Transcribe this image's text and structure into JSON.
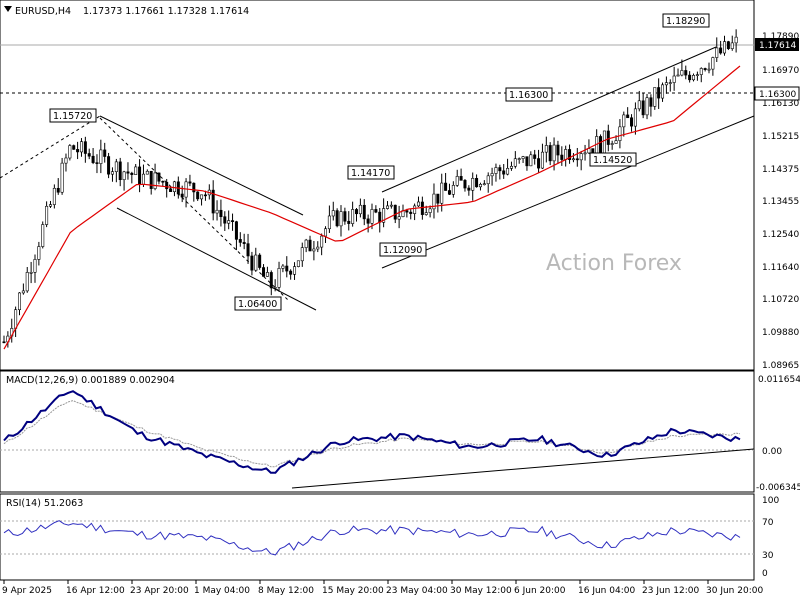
{
  "header": {
    "symbol": "EURUSD,H4",
    "ohlc": "1.17373 1.17661 1.17328 1.17614"
  },
  "watermark": "Action Forex",
  "colors": {
    "candles": "#000000",
    "ma": "#e00000",
    "macd": "#000080",
    "signal": "#999999",
    "rsi": "#3030c0",
    "price_tag_bg": "#000000"
  },
  "chart_data": [
    {
      "type": "candlestick",
      "title": "EURUSD,H4",
      "ohlc_label": "1.17373 1.17661 1.17328 1.17614",
      "ylim": [
        1.0895,
        1.1825
      ],
      "y_ticks": [
        "1.17890",
        "1.16970",
        "1.16130",
        "1.15215",
        "1.14375",
        "1.13455",
        "1.12540",
        "1.11640",
        "1.10720",
        "1.09880",
        "1.08965"
      ],
      "last_price": "1.17614",
      "level_line": "1.16300",
      "series": [
        {
          "name": "Price",
          "x": [
            "9 Apr 2025",
            "16 Apr 12:00",
            "23 Apr 20:00",
            "1 May 04:00",
            "8 May 12:00",
            "15 May 20:00",
            "23 May 04:00",
            "30 May 12:00",
            "6 Jun 20:00",
            "16 Jun 04:00",
            "23 Jun 12:00",
            "30 Jun 20:00"
          ],
          "values": [
            1.095,
            1.148,
            1.14,
            1.136,
            1.11,
            1.129,
            1.13,
            1.139,
            1.145,
            1.149,
            1.165,
            1.1761
          ]
        },
        {
          "name": "MA",
          "x": [
            "9 Apr 2025",
            "16 Apr 12:00",
            "23 Apr 20:00",
            "1 May 04:00",
            "8 May 12:00",
            "15 May 20:00",
            "23 May 04:00",
            "30 May 12:00",
            "6 Jun 20:00",
            "16 Jun 04:00",
            "23 Jun 12:00",
            "30 Jun 20:00"
          ],
          "values": [
            1.093,
            1.125,
            1.138,
            1.136,
            1.13,
            1.122,
            1.131,
            1.133,
            1.141,
            1.15,
            1.155,
            1.17
          ]
        }
      ],
      "annotations": [
        "1.15720",
        "1.14170",
        "1.16300",
        "1.18290",
        "1.12090",
        "1.06400",
        "1.14520"
      ]
    },
    {
      "type": "line",
      "title": "MACD(12,26,9) 0.001889 0.002904",
      "y_ticks": [
        "0.011654",
        "0.00",
        "-0.006345"
      ],
      "ylim": [
        -0.0068,
        0.0125
      ],
      "series": [
        {
          "name": "MACD",
          "values": [
            0.0015,
            0.0108,
            0.003,
            -0.001,
            -0.004,
            0.0015,
            0.0025,
            0.0005,
            0.002,
            -0.001,
            0.0035,
            0.0019
          ]
        },
        {
          "name": "Signal",
          "values": [
            0.001,
            0.009,
            0.004,
            0.0,
            -0.003,
            0.0005,
            0.002,
            0.001,
            0.0015,
            -0.0005,
            0.0025,
            0.0029
          ]
        }
      ]
    },
    {
      "type": "line",
      "title": "RSI(14) 51.2063",
      "y_ticks": [
        "100",
        "70",
        "30",
        "0"
      ],
      "ylim": [
        0,
        100
      ],
      "series": [
        {
          "name": "RSI",
          "values": [
            55,
            70,
            55,
            50,
            30,
            60,
            60,
            55,
            60,
            40,
            60,
            51
          ]
        }
      ]
    }
  ]
}
